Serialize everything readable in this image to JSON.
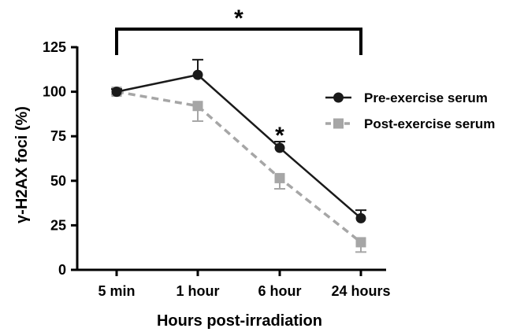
{
  "chart_data": {
    "type": "line",
    "xlabel": "Hours post-irradiation",
    "ylabel": "γ-H2AX foci (%)",
    "categories": [
      "5 min",
      "1 hour",
      "6 hour",
      "24 hours"
    ],
    "ylim": [
      0,
      125
    ],
    "yticks": [
      0,
      25,
      50,
      75,
      100,
      125
    ],
    "grid": false,
    "legend_position": "right",
    "series": [
      {
        "name": "Pre-exercise serum",
        "values": [
          100,
          109.5,
          68.5,
          29
        ],
        "errors": [
          1.5,
          8.5,
          3.5,
          4.5
        ],
        "color": "#1a1a1a",
        "marker": "circle",
        "line_style": "solid"
      },
      {
        "name": "Post-exercise serum",
        "values": [
          100,
          92,
          51.5,
          15.5
        ],
        "errors": [
          1.5,
          8.5,
          6,
          5.5
        ],
        "color": "#a6a6a6",
        "marker": "square",
        "line_style": "dashed"
      }
    ],
    "annotations": [
      {
        "text": "*",
        "type": "bracket",
        "from_category": "5 min",
        "to_category": "24 hours"
      },
      {
        "text": "*",
        "type": "point",
        "category": "6 hour"
      }
    ]
  }
}
